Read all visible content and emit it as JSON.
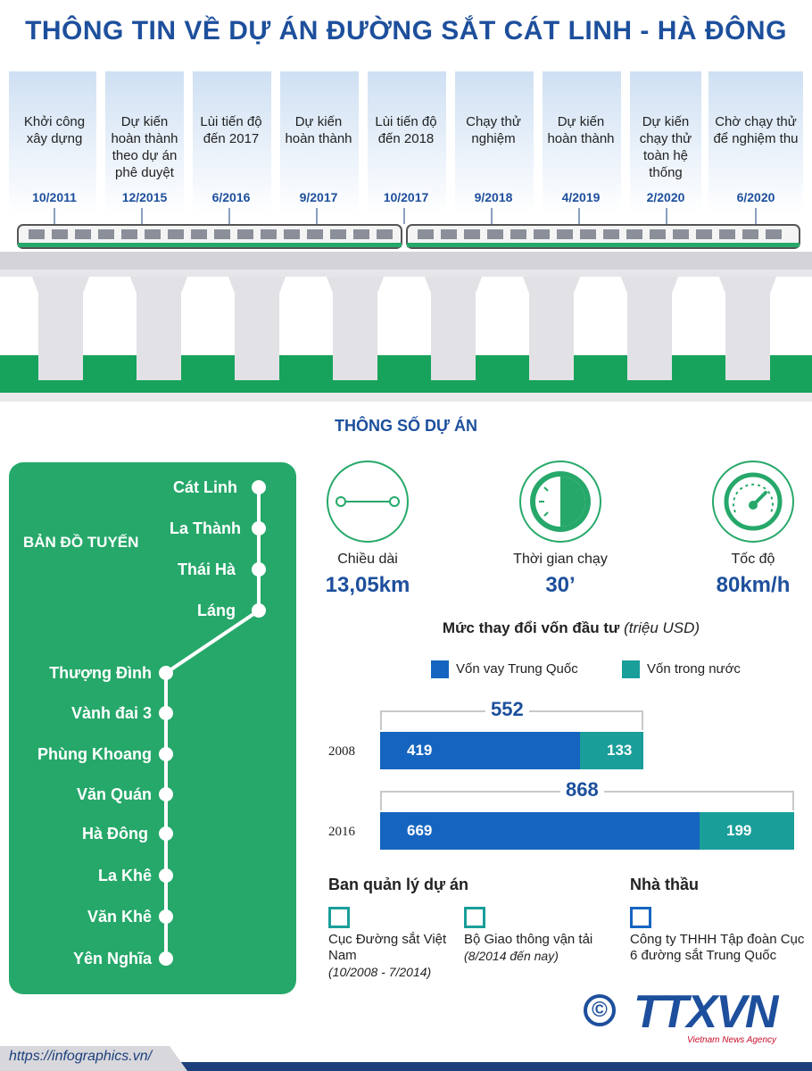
{
  "title": "THÔNG  TIN VỀ DỰ ÁN ĐƯỜNG SẮT CÁT LINH - HÀ ĐÔNG",
  "timeline": [
    {
      "label": "Khởi công xây dựng",
      "date": "10/2011"
    },
    {
      "label": "Dự kiến hoàn thành theo dự án phê duyệt",
      "date": "12/2015"
    },
    {
      "label": "Lùi tiến độ đến 2017",
      "date": "6/2016"
    },
    {
      "label": "Dự kiến hoàn thành",
      "date": "9/2017"
    },
    {
      "label": "Lùi tiến độ đến 2018",
      "date": "10/2017"
    },
    {
      "label": "Chạy thử nghiệm",
      "date": "9/2018"
    },
    {
      "label": "Dự kiến hoàn thành",
      "date": "4/2019"
    },
    {
      "label": "Dự kiến chạy thử toàn hệ thống",
      "date": "2/2020"
    },
    {
      "label": "Chờ chạy thử để nghiệm thu",
      "date": "6/2020"
    }
  ],
  "section_title": "THÔNG SỐ DỰ ÁN",
  "map": {
    "heading": "BẢN ĐỒ TUYẾN",
    "stations": [
      "Cát Linh",
      "La Thành",
      "Thái Hà",
      "Láng",
      "Thượng Đình",
      "Vành đai 3",
      "Phùng Khoang",
      "Văn Quán",
      "Hà Đông",
      "La Khê",
      "Văn Khê",
      "Yên Nghĩa"
    ]
  },
  "stats": [
    {
      "icon": "line-length-icon",
      "label": "Chiều dài",
      "value": "13,05km"
    },
    {
      "icon": "clock-icon",
      "label": "Thời gian chạy",
      "value": "30’"
    },
    {
      "icon": "speedometer-icon",
      "label": "Tốc độ",
      "value": "80km/h"
    }
  ],
  "chart_data": {
    "type": "bar",
    "title": "Mức thay đổi vốn đầu tư",
    "title_unit": "(triệu USD)",
    "categories": [
      "2008",
      "2016"
    ],
    "series": [
      {
        "name": "Vốn vay Trung Quốc",
        "values": [
          419,
          669
        ],
        "color": "#1565c0"
      },
      {
        "name": "Vốn trong nước",
        "values": [
          133,
          199
        ],
        "color": "#1a9e9a"
      }
    ],
    "totals": [
      "552",
      "868"
    ],
    "stacked": true,
    "orientation": "horizontal"
  },
  "management": {
    "heading": "Ban quản lý dự án",
    "items": [
      {
        "name": "Cục Đường sắt Việt Nam",
        "period": "(10/2008 - 7/2014)"
      },
      {
        "name": "Bộ Giao thông vận tải",
        "period": "(8/2014 đến nay)"
      }
    ]
  },
  "contractor": {
    "heading": "Nhà thầu",
    "name": "Công ty THHH Tập đoàn Cục 6 đường sắt Trung Quốc"
  },
  "logo": {
    "copyright": "©",
    "text": "TTXVN",
    "subtext": "Vietnam News Agency"
  },
  "footer_url": "https://infographics.vn/",
  "colors": {
    "blue": "#1d4f9c",
    "green": "#26a86a",
    "teal": "#1a9e9a",
    "bar_blue": "#1565c0"
  }
}
